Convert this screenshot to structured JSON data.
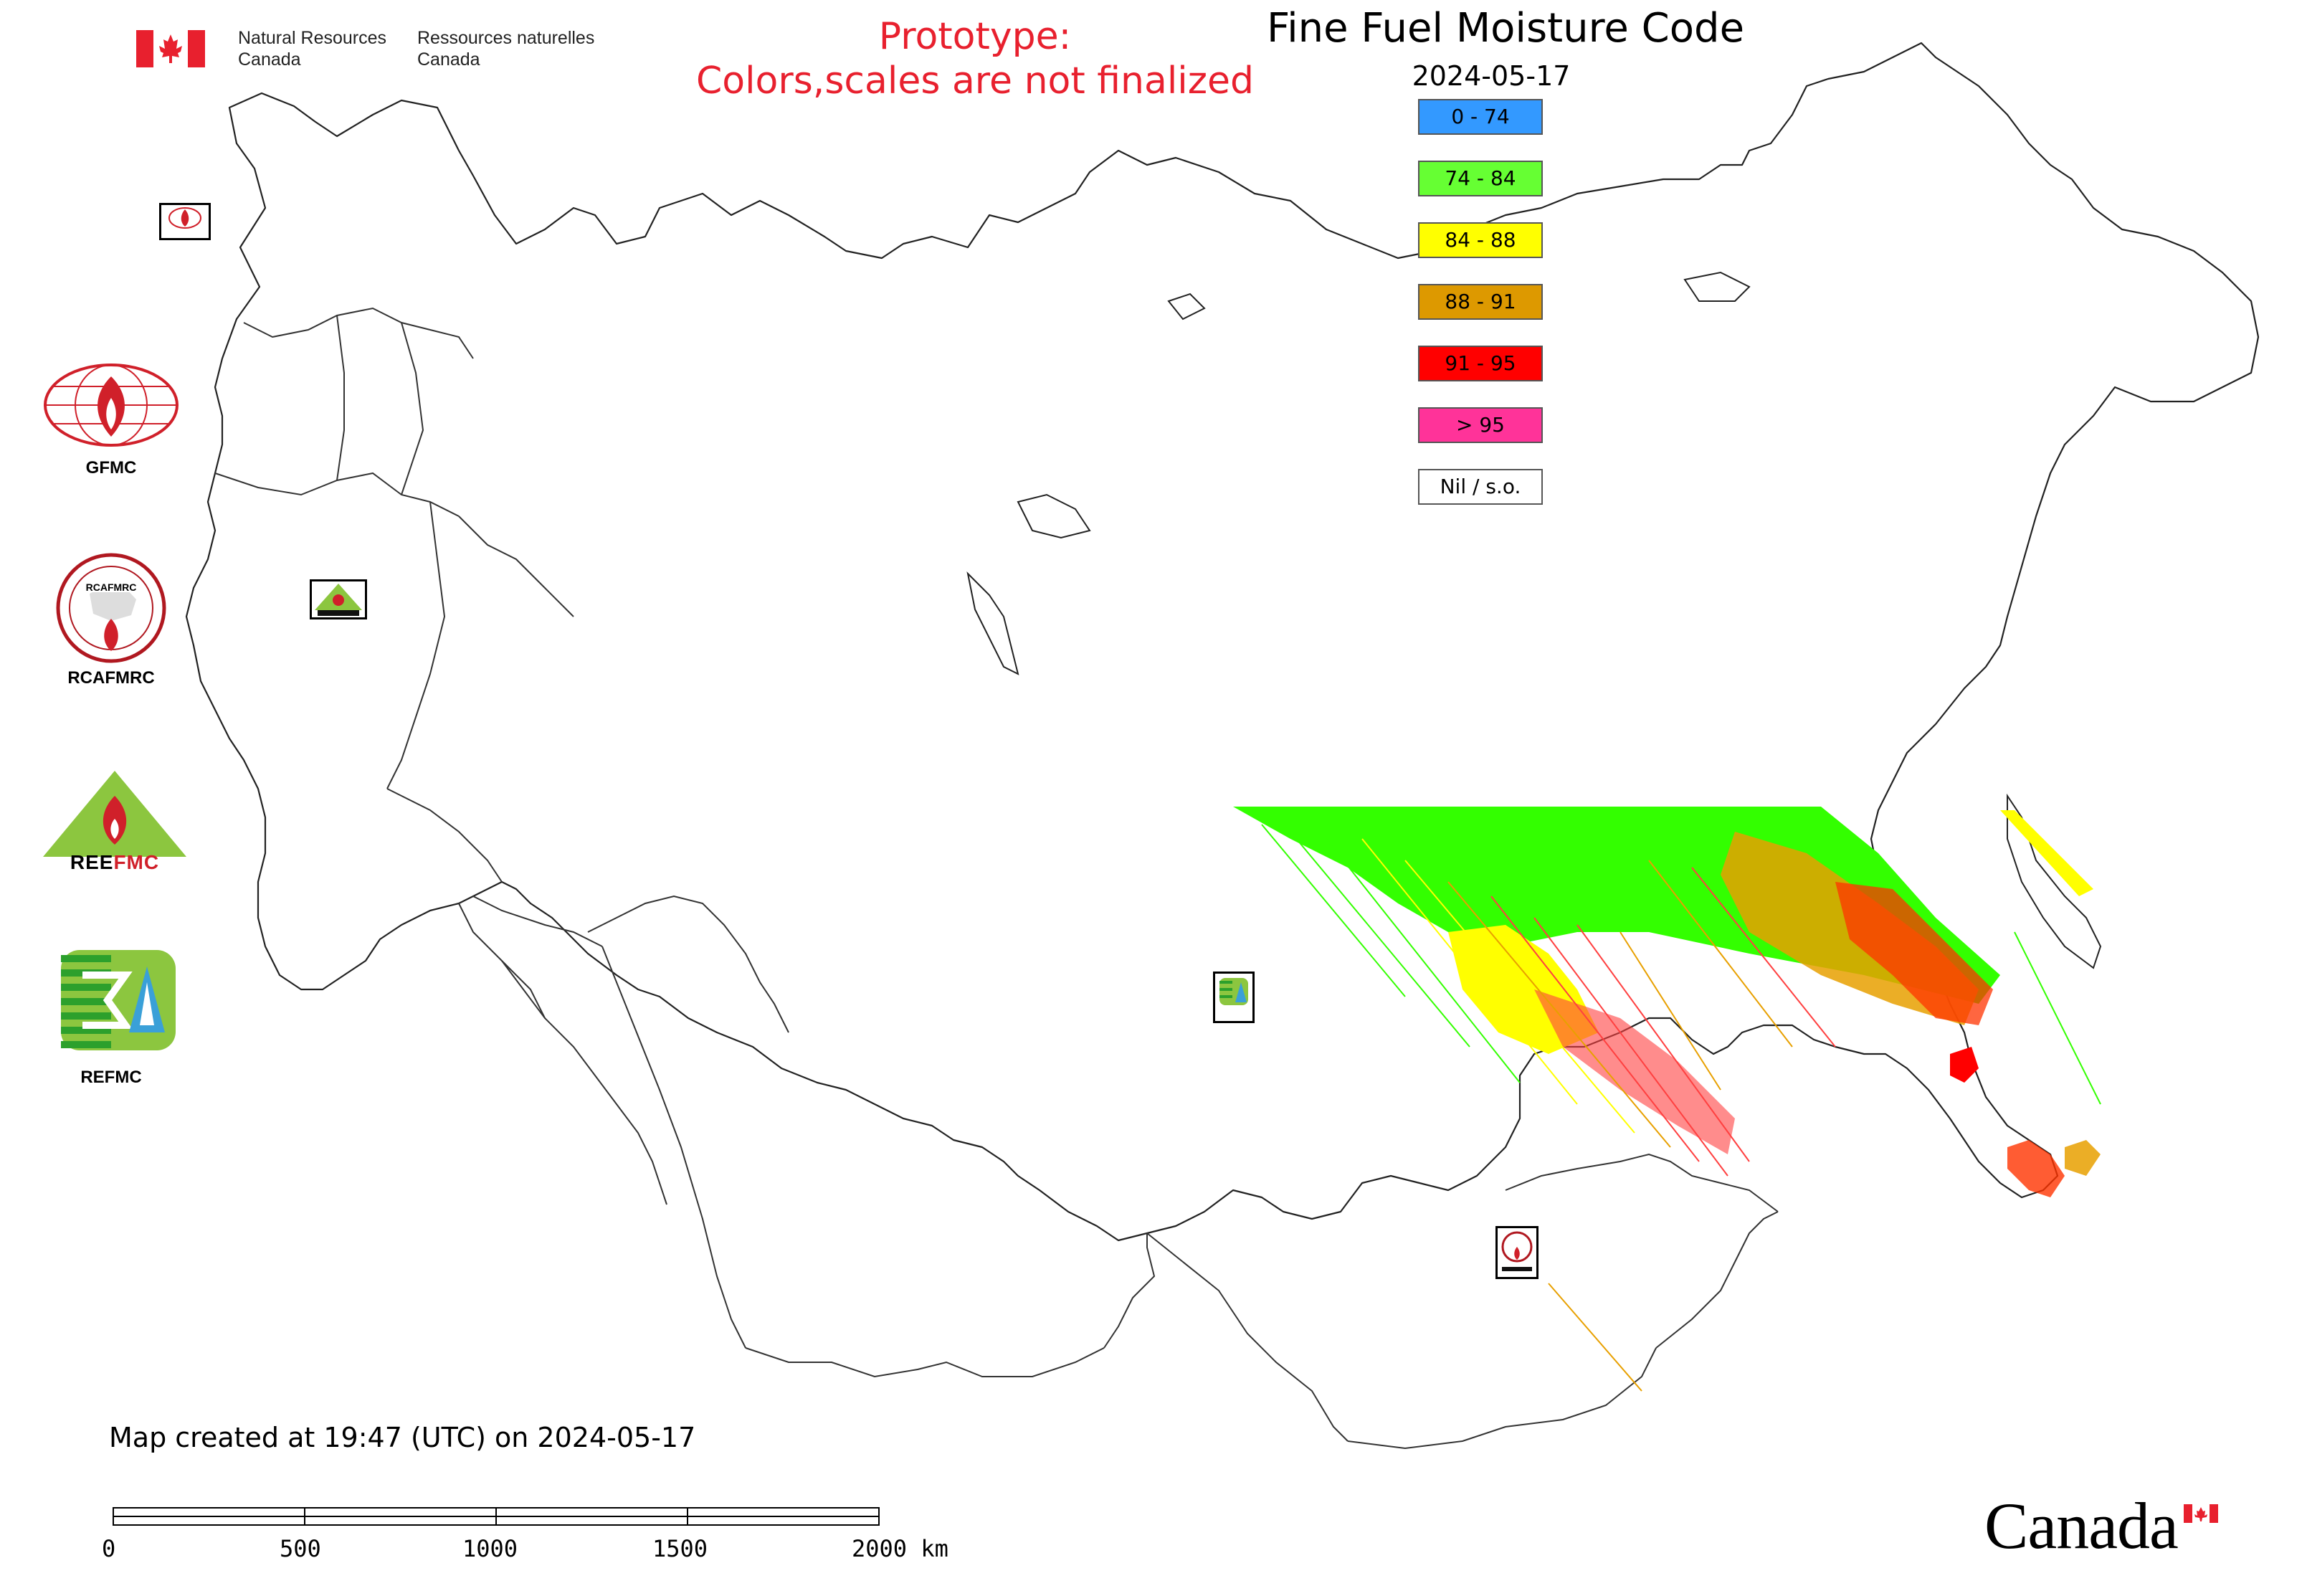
{
  "header": {
    "dept_en_line1": "Natural Resources",
    "dept_en_line2": "Canada",
    "dept_fr_line1": "Ressources naturelles",
    "dept_fr_line2": "Canada",
    "prototype_line1": "Prototype:",
    "prototype_line2": "Colors,scales are not finalized",
    "title": "Fine Fuel Moisture Code",
    "date": "2024-05-17"
  },
  "legend": [
    {
      "label": "0 - 74",
      "color": "#3399ff"
    },
    {
      "label": "74 - 84",
      "color": "#66ff33"
    },
    {
      "label": "84 - 88",
      "color": "#ffff00"
    },
    {
      "label": "88 - 91",
      "color": "#dd9900"
    },
    {
      "label": "91 - 95",
      "color": "#ff0000"
    },
    {
      "label": "> 95",
      "color": "#ff3399"
    },
    {
      "label": "Nil / s.o.",
      "color": "#ffffff"
    }
  ],
  "orgs": [
    {
      "label": "GFMC",
      "icon": "gfmc-logo"
    },
    {
      "label": "RCAFMRC",
      "icon": "rcafmrc-logo"
    },
    {
      "label": "",
      "icon": "reefmc-logo",
      "logo_text": "REEFMC"
    },
    {
      "label": "REFMC",
      "icon": "refmc-logo"
    }
  ],
  "map_markers": [
    {
      "icon": "gfmc-marker",
      "label": "GFMC"
    },
    {
      "icon": "reefmc-marker",
      "label": "REEFMC"
    },
    {
      "icon": "refmc-marker",
      "label": "REFMC"
    },
    {
      "icon": "rcafmrc-marker",
      "label": "RCAFMRC"
    }
  ],
  "footer": {
    "created": "Map created at 19:47 (UTC) on 2024-05-17",
    "scale_ticks": [
      "0",
      "500",
      "1000",
      "1500",
      "2000 km"
    ],
    "canada_wordmark": "Canada"
  }
}
